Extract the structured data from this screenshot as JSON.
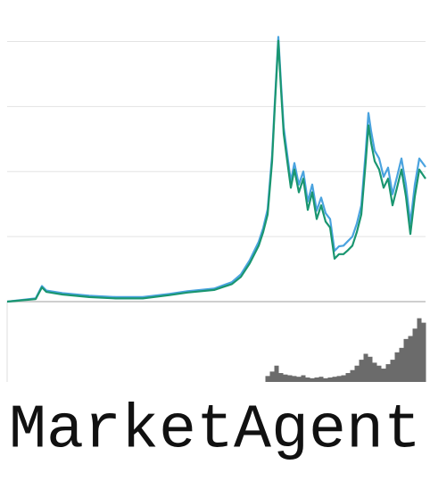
{
  "chart_data": [
    {
      "type": "line",
      "title": "MarketAgent",
      "x": [
        0,
        32,
        39,
        44,
        62,
        92,
        122,
        152,
        182,
        202,
        232,
        252,
        262,
        272,
        282,
        287,
        292,
        297,
        300,
        304,
        307,
        310,
        314,
        318,
        322,
        327,
        332,
        337,
        342,
        347,
        352,
        357,
        362,
        367,
        372,
        377,
        382,
        387,
        392,
        397,
        402,
        405,
        408,
        412,
        417,
        422,
        427,
        432,
        437,
        442,
        447,
        452,
        457,
        462,
        469
      ],
      "xlim": [
        0,
        469
      ],
      "ylim": [
        0,
        4.5
      ],
      "yticks": [
        0,
        1,
        2,
        3,
        4
      ],
      "grid": true,
      "series": [
        {
          "color": "#4aa3df",
          "values": [
            0,
            0.05,
            0.24,
            0.17,
            0.13,
            0.09,
            0.07,
            0.07,
            0.12,
            0.16,
            0.2,
            0.3,
            0.42,
            0.64,
            0.92,
            1.13,
            1.42,
            2.25,
            3.05,
            4.07,
            3.35,
            2.68,
            2.26,
            1.85,
            2.13,
            1.8,
            2.0,
            1.54,
            1.8,
            1.4,
            1.6,
            1.36,
            1.27,
            0.78,
            0.85,
            0.86,
            0.93,
            1.0,
            1.2,
            1.48,
            2.32,
            2.9,
            2.62,
            2.32,
            2.2,
            1.92,
            2.06,
            1.65,
            1.92,
            2.2,
            1.8,
            1.2,
            1.8,
            2.2,
            2.07
          ]
        },
        {
          "color": "#1a9670",
          "values": [
            0,
            0.04,
            0.22,
            0.15,
            0.11,
            0.07,
            0.05,
            0.05,
            0.1,
            0.14,
            0.18,
            0.27,
            0.38,
            0.59,
            0.86,
            1.07,
            1.34,
            2.16,
            2.99,
            4.01,
            3.26,
            2.58,
            2.16,
            1.75,
            2.03,
            1.68,
            1.89,
            1.41,
            1.68,
            1.27,
            1.48,
            1.23,
            1.14,
            0.66,
            0.73,
            0.73,
            0.79,
            0.86,
            1.07,
            1.34,
            2.16,
            2.71,
            2.44,
            2.16,
            2.03,
            1.75,
            1.89,
            1.48,
            1.75,
            2.03,
            1.62,
            1.04,
            1.62,
            2.03,
            1.89
          ]
        }
      ]
    },
    {
      "type": "bar",
      "color": "#6b6b6b",
      "x": [
        292,
        297,
        302,
        307,
        312,
        317,
        322,
        327,
        332,
        337,
        342,
        347,
        352,
        357,
        362,
        367,
        372,
        377,
        382,
        387,
        392,
        397,
        402,
        407,
        412,
        417,
        422,
        427,
        432,
        437,
        442,
        447,
        452,
        457,
        462,
        467
      ],
      "xlim": [
        0,
        469
      ],
      "ylim": [
        0,
        100
      ],
      "values": [
        8,
        14,
        22,
        12,
        10,
        9,
        8,
        7,
        9,
        6,
        5,
        6,
        7,
        5,
        6,
        7,
        8,
        9,
        12,
        16,
        22,
        30,
        38,
        34,
        26,
        22,
        18,
        24,
        30,
        40,
        46,
        58,
        62,
        72,
        86,
        80
      ]
    }
  ]
}
